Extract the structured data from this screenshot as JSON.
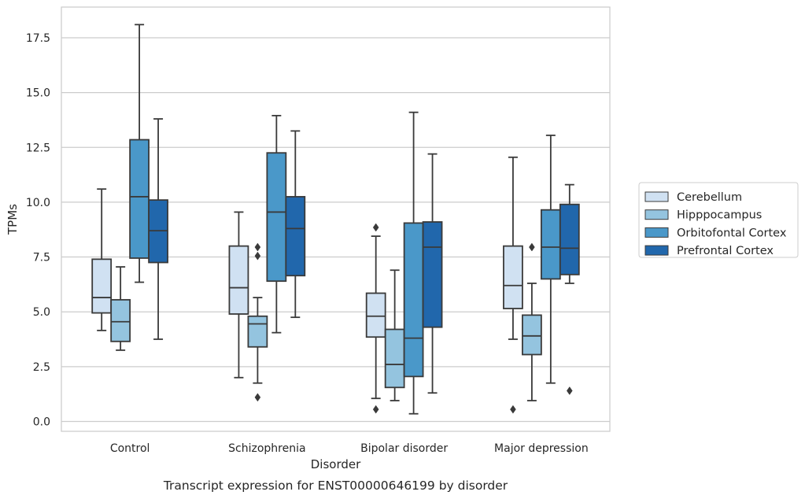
{
  "chart_data": {
    "type": "box",
    "caption": "Transcript expression for ENST00000646199 by disorder",
    "xlabel": "Disorder",
    "ylabel": "TPMs",
    "ylim": [
      -0.45,
      18.9
    ],
    "yticks": [
      "0.0",
      "2.5",
      "5.0",
      "7.5",
      "10.0",
      "12.5",
      "15.0",
      "17.5"
    ],
    "ytick_values": [
      0,
      2.5,
      5,
      7.5,
      10,
      12.5,
      15,
      17.5
    ],
    "grid": "horizontal",
    "legend_position": "right",
    "categories": [
      "Control",
      "Schizophrenia",
      "Bipolar disorder",
      "Major depression"
    ],
    "series": [
      {
        "name": "Cerebellum",
        "color": "#d0e1f2",
        "boxes": [
          {
            "whisker_low": 4.15,
            "q1": 4.95,
            "median": 5.65,
            "q3": 7.4,
            "whisker_high": 10.6,
            "outliers": []
          },
          {
            "whisker_low": 2.0,
            "q1": 4.9,
            "median": 6.1,
            "q3": 8.0,
            "whisker_high": 9.55,
            "outliers": []
          },
          {
            "whisker_low": 1.05,
            "q1": 3.85,
            "median": 4.8,
            "q3": 5.85,
            "whisker_high": 8.45,
            "outliers": [
              8.85,
              0.55
            ]
          },
          {
            "whisker_low": 3.75,
            "q1": 5.15,
            "median": 6.2,
            "q3": 8.0,
            "whisker_high": 12.05,
            "outliers": [
              0.55
            ]
          }
        ]
      },
      {
        "name": "Hipppocampus",
        "color": "#94c4df",
        "boxes": [
          {
            "whisker_low": 3.25,
            "q1": 3.65,
            "median": 4.55,
            "q3": 5.55,
            "whisker_high": 7.05,
            "outliers": []
          },
          {
            "whisker_low": 1.75,
            "q1": 3.4,
            "median": 4.45,
            "q3": 4.8,
            "whisker_high": 5.65,
            "outliers": [
              7.95,
              7.55,
              1.1
            ]
          },
          {
            "whisker_low": 0.95,
            "q1": 1.55,
            "median": 2.6,
            "q3": 4.2,
            "whisker_high": 6.9,
            "outliers": []
          },
          {
            "whisker_low": 0.95,
            "q1": 3.05,
            "median": 3.9,
            "q3": 4.85,
            "whisker_high": 6.3,
            "outliers": [
              7.95
            ]
          }
        ]
      },
      {
        "name": "Orbitofontal Cortex",
        "color": "#4a98c9",
        "boxes": [
          {
            "whisker_low": 6.35,
            "q1": 7.45,
            "median": 10.25,
            "q3": 12.85,
            "whisker_high": 18.1,
            "outliers": []
          },
          {
            "whisker_low": 4.05,
            "q1": 6.4,
            "median": 9.55,
            "q3": 12.25,
            "whisker_high": 13.95,
            "outliers": []
          },
          {
            "whisker_low": 0.35,
            "q1": 2.05,
            "median": 3.8,
            "q3": 9.05,
            "whisker_high": 14.1,
            "outliers": []
          },
          {
            "whisker_low": 1.75,
            "q1": 6.5,
            "median": 7.95,
            "q3": 9.65,
            "whisker_high": 13.05,
            "outliers": []
          }
        ]
      },
      {
        "name": "Prefrontal Cortex",
        "color": "#2167ac",
        "boxes": [
          {
            "whisker_low": 3.75,
            "q1": 7.25,
            "median": 8.7,
            "q3": 10.1,
            "whisker_high": 13.8,
            "outliers": []
          },
          {
            "whisker_low": 4.75,
            "q1": 6.65,
            "median": 8.8,
            "q3": 10.25,
            "whisker_high": 13.25,
            "outliers": []
          },
          {
            "whisker_low": 1.3,
            "q1": 4.3,
            "median": 7.95,
            "q3": 9.1,
            "whisker_high": 12.2,
            "outliers": []
          },
          {
            "whisker_low": 6.3,
            "q1": 6.7,
            "median": 7.9,
            "q3": 9.9,
            "whisker_high": 10.8,
            "outliers": [
              1.4
            ]
          }
        ]
      }
    ]
  }
}
